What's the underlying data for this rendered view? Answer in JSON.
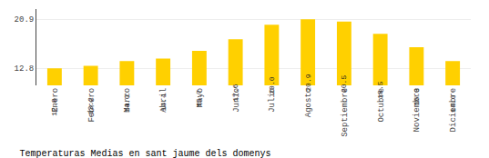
{
  "chart_data": {
    "type": "bar",
    "title": "Temperaturas Medias en sant jaume dels domenys",
    "categories": [
      "Enero",
      "Febrero",
      "Marzo",
      "Abril",
      "Mayo",
      "Junio",
      "Julio",
      "Agosto",
      "Septiembre",
      "Octubre",
      "Noviembre",
      "Diciembre"
    ],
    "values": [
      12.8,
      13.2,
      14.0,
      14.4,
      15.7,
      17.6,
      20.0,
      20.9,
      20.5,
      18.5,
      16.3,
      14.0
    ],
    "value_labels": [
      "12.8",
      "13.2",
      "14.0",
      "14.4",
      "15.7",
      "17.6",
      "20.0",
      "20.9",
      "20.5",
      "18.5",
      "16.3",
      "14.0"
    ],
    "color": "#FFD000",
    "ylim": [
      10,
      22.572
    ],
    "yticks": [
      12.8,
      20.9
    ],
    "grid": true,
    "data_labels": true
  }
}
